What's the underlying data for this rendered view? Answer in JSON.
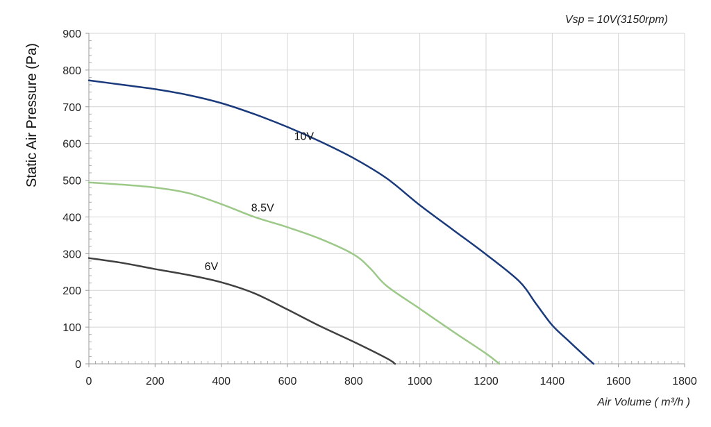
{
  "chart_data": {
    "type": "line",
    "annotation": "Vsp = 10V(3150rpm)",
    "xlabel": "Air Volume ( m³/h )",
    "ylabel": "Static Air Pressure  (Pa)",
    "xlim": [
      0,
      1800
    ],
    "ylim": [
      0,
      900
    ],
    "x_ticks": [
      "0",
      "200",
      "400",
      "600",
      "800",
      "1000",
      "1200",
      "1400",
      "1600",
      "1800"
    ],
    "y_ticks": [
      "0",
      "100",
      "200",
      "300",
      "400",
      "500",
      "600",
      "700",
      "800",
      "900"
    ],
    "grid": true,
    "series": [
      {
        "name": "10V",
        "color": "#1a3a7c",
        "x": [
          0,
          100,
          200,
          300,
          400,
          500,
          600,
          700,
          800,
          900,
          1000,
          1100,
          1200,
          1300,
          1350,
          1400,
          1450,
          1500,
          1525
        ],
        "y": [
          772,
          760,
          748,
          732,
          710,
          680,
          645,
          605,
          560,
          505,
          432,
          365,
          298,
          225,
          165,
          105,
          62,
          20,
          0
        ]
      },
      {
        "name": "8.5V",
        "color": "#9cc888",
        "x": [
          0,
          100,
          200,
          300,
          400,
          500,
          600,
          700,
          800,
          850,
          900,
          1000,
          1100,
          1200,
          1240
        ],
        "y": [
          494,
          488,
          480,
          465,
          435,
          400,
          372,
          340,
          298,
          260,
          212,
          150,
          88,
          28,
          0
        ]
      },
      {
        "name": "6V",
        "color": "#404040",
        "x": [
          0,
          100,
          200,
          300,
          400,
          500,
          600,
          700,
          800,
          900,
          925
        ],
        "y": [
          288,
          275,
          258,
          242,
          222,
          192,
          148,
          102,
          60,
          15,
          0
        ]
      }
    ]
  }
}
